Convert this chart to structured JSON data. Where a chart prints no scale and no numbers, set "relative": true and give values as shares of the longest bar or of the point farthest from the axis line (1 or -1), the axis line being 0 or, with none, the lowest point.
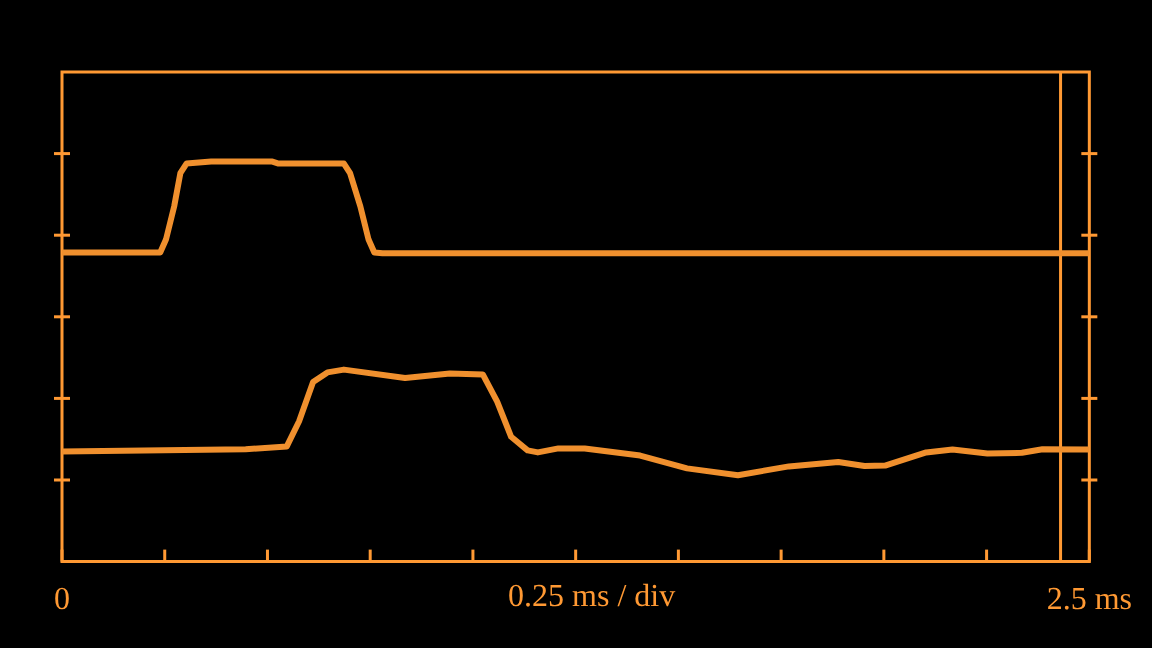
{
  "chart_data": {
    "type": "line",
    "relative": true,
    "xlabel": "0.25 ms / div",
    "xlim": [
      0,
      2.5
    ],
    "xticks": [
      0,
      {
        "value": 0.25,
        "label": null
      },
      {
        "value": 0.5,
        "label": null
      },
      {
        "value": 0.75,
        "label": null
      },
      {
        "value": 1,
        "label": null
      },
      {
        "value": 1.25,
        "label": null
      },
      {
        "value": 1.5,
        "label": null
      },
      {
        "value": 1.75,
        "label": null
      },
      {
        "value": 2,
        "label": null
      },
      {
        "value": 2.25,
        "label": null
      },
      {
        "value": 2.5,
        "label": "2.5 ms"
      }
    ],
    "grid": false,
    "legend": false,
    "marker": "none",
    "line_style": "solid",
    "ref_lines": [
      {
        "axis": "x",
        "value": 2.43,
        "color": "#ff9933"
      }
    ],
    "series": [
      {
        "color": "#f0902e",
        "x": [
          0,
          0.239,
          0.253,
          0.273,
          0.288,
          0.303,
          0.363,
          0.512,
          0.527,
          0.686,
          0.701,
          0.726,
          0.746,
          0.76,
          0.78,
          2.5
        ],
        "values": [
          0.773,
          0.773,
          0.805,
          0.888,
          0.971,
          0.995,
          1,
          1,
          0.995,
          0.995,
          0.971,
          0.888,
          0.805,
          0.773,
          0.771,
          0.771
        ]
      },
      {
        "color": "#f0902e",
        "x": [
          0,
          0.447,
          0.547,
          0.577,
          0.611,
          0.646,
          0.686,
          0.835,
          0.944,
          1.024,
          1.059,
          1.093,
          1.133,
          1.158,
          1.208,
          1.272,
          1.407,
          1.521,
          1.645,
          1.769,
          1.889,
          1.953,
          2.003,
          2.103,
          2.167,
          2.252,
          2.336,
          2.386,
          2.5
        ],
        "values": [
          0.275,
          0.281,
          0.288,
          0.351,
          0.449,
          0.473,
          0.48,
          0.459,
          0.47,
          0.468,
          0.4,
          0.312,
          0.278,
          0.273,
          0.283,
          0.283,
          0.265,
          0.233,
          0.216,
          0.238,
          0.249,
          0.239,
          0.24,
          0.273,
          0.28,
          0.27,
          0.272,
          0.281,
          0.28
        ]
      }
    ]
  }
}
